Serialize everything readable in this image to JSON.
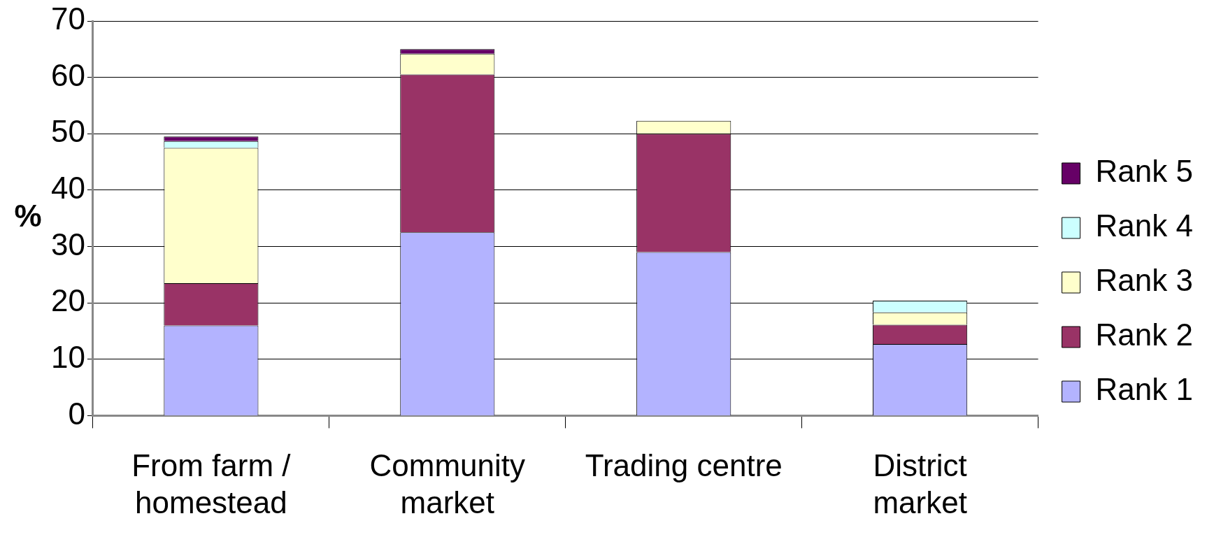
{
  "chart_data": {
    "type": "bar",
    "stacked": true,
    "ylabel": "%",
    "categories": [
      "From farm / homestead",
      "Community market",
      "Trading centre",
      "District market"
    ],
    "series": [
      {
        "name": "Rank 1",
        "color": "#b3b3ff",
        "values": [
          16,
          32.5,
          29,
          12.7
        ]
      },
      {
        "name": "Rank 2",
        "color": "#993366",
        "values": [
          7.5,
          28,
          21,
          3.4
        ]
      },
      {
        "name": "Rank 3",
        "color": "#ffffcc",
        "values": [
          24,
          3.7,
          2.3,
          2.2
        ]
      },
      {
        "name": "Rank 4",
        "color": "#ccffff",
        "values": [
          1.2,
          0,
          0,
          2.1
        ]
      },
      {
        "name": "Rank 5",
        "color": "#660066",
        "values": [
          0.8,
          0.8,
          0,
          0
        ]
      }
    ],
    "ylim": [
      0,
      70
    ],
    "yticks": [
      0,
      10,
      20,
      30,
      40,
      50,
      60,
      70
    ],
    "grid": "y",
    "legend": "right"
  }
}
